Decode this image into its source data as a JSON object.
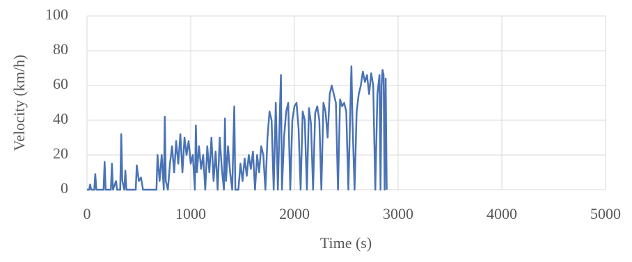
{
  "chart_data": {
    "type": "line",
    "xlabel": "Time (s)",
    "ylabel": "Velocity (km/h)",
    "xlim": [
      0,
      5000
    ],
    "xticks": [
      0,
      1000,
      2000,
      3000,
      4000,
      5000
    ],
    "ylim": [
      0,
      100
    ],
    "yticks": [
      0,
      20,
      40,
      60,
      80,
      100
    ],
    "grid": true,
    "x": [
      0,
      20,
      30,
      40,
      70,
      80,
      90,
      160,
      170,
      180,
      230,
      240,
      250,
      280,
      290,
      320,
      330,
      340,
      360,
      370,
      380,
      470,
      480,
      500,
      520,
      540,
      670,
      680,
      700,
      720,
      740,
      750,
      760,
      780,
      800,
      820,
      840,
      860,
      880,
      900,
      920,
      940,
      960,
      980,
      1000,
      1020,
      1040,
      1050,
      1060,
      1080,
      1100,
      1120,
      1140,
      1160,
      1180,
      1200,
      1220,
      1240,
      1260,
      1280,
      1300,
      1320,
      1330,
      1340,
      1360,
      1380,
      1400,
      1420,
      1430,
      1460,
      1480,
      1500,
      1520,
      1540,
      1560,
      1580,
      1600,
      1620,
      1640,
      1660,
      1680,
      1700,
      1720,
      1740,
      1760,
      1780,
      1800,
      1820,
      1840,
      1860,
      1870,
      1880,
      1900,
      1920,
      1940,
      1960,
      1980,
      2000,
      2020,
      2040,
      2060,
      2080,
      2100,
      2120,
      2140,
      2160,
      2180,
      2200,
      2220,
      2240,
      2260,
      2280,
      2300,
      2320,
      2340,
      2360,
      2380,
      2400,
      2420,
      2440,
      2460,
      2480,
      2500,
      2520,
      2540,
      2550,
      2560,
      2580,
      2600,
      2620,
      2640,
      2660,
      2680,
      2700,
      2720,
      2740,
      2760,
      2780,
      2800,
      2820,
      2830,
      2840,
      2850,
      2860,
      2870,
      2880,
      2890
    ],
    "series": [
      {
        "name": "Velocity",
        "color": "#4a73b5",
        "values": [
          0,
          0,
          3,
          0,
          0,
          9,
          0,
          0,
          16,
          0,
          0,
          15,
          0,
          5,
          0,
          0,
          32,
          5,
          0,
          11,
          0,
          0,
          14,
          5,
          7,
          0,
          0,
          20,
          5,
          20,
          0,
          42,
          5,
          0,
          15,
          25,
          10,
          28,
          15,
          32,
          10,
          30,
          20,
          28,
          15,
          20,
          0,
          37,
          10,
          25,
          12,
          20,
          0,
          25,
          10,
          30,
          5,
          22,
          0,
          30,
          12,
          0,
          41,
          5,
          25,
          10,
          0,
          48,
          0,
          0,
          15,
          5,
          18,
          8,
          20,
          12,
          22,
          0,
          20,
          10,
          25,
          20,
          0,
          30,
          45,
          40,
          0,
          50,
          0,
          45,
          66,
          0,
          30,
          45,
          50,
          0,
          40,
          48,
          50,
          35,
          0,
          45,
          40,
          0,
          47,
          38,
          0,
          44,
          48,
          40,
          0,
          50,
          45,
          30,
          55,
          60,
          55,
          50,
          0,
          52,
          48,
          50,
          45,
          0,
          50,
          71,
          40,
          0,
          45,
          55,
          60,
          68,
          62,
          66,
          55,
          67,
          60,
          0,
          55,
          66,
          0,
          60,
          69,
          66,
          0,
          64,
          0
        ]
      }
    ]
  }
}
